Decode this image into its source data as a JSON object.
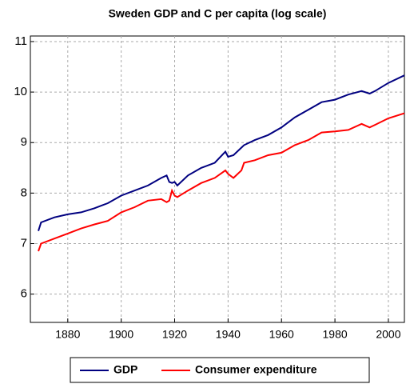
{
  "chart_data": {
    "type": "line",
    "title": "Sweden GDP and C per capita (log scale)",
    "x": [
      1869,
      1870,
      1875,
      1880,
      1885,
      1890,
      1895,
      1900,
      1905,
      1910,
      1915,
      1917,
      1918,
      1919,
      1920,
      1921,
      1925,
      1930,
      1935,
      1939,
      1940,
      1942,
      1945,
      1946,
      1950,
      1955,
      1960,
      1965,
      1970,
      1975,
      1980,
      1985,
      1990,
      1993,
      1995,
      2000,
      2006
    ],
    "series": [
      {
        "name": "GDP",
        "color": "#000080",
        "values": [
          7.25,
          7.42,
          7.52,
          7.58,
          7.62,
          7.7,
          7.8,
          7.95,
          8.05,
          8.15,
          8.3,
          8.35,
          8.22,
          8.2,
          8.22,
          8.15,
          8.35,
          8.5,
          8.6,
          8.82,
          8.72,
          8.75,
          8.9,
          8.95,
          9.05,
          9.15,
          9.3,
          9.5,
          9.65,
          9.8,
          9.85,
          9.95,
          10.02,
          9.97,
          10.02,
          10.18,
          10.33
        ]
      },
      {
        "name": "Consumer expenditure",
        "color": "#ff0000",
        "values": [
          6.85,
          7.0,
          7.1,
          7.2,
          7.3,
          7.38,
          7.45,
          7.62,
          7.72,
          7.85,
          7.88,
          7.82,
          7.85,
          8.05,
          7.95,
          7.92,
          8.05,
          8.2,
          8.3,
          8.45,
          8.38,
          8.3,
          8.45,
          8.6,
          8.65,
          8.75,
          8.8,
          8.95,
          9.05,
          9.2,
          9.22,
          9.25,
          9.37,
          9.3,
          9.35,
          9.48,
          9.58
        ]
      }
    ],
    "xlim": [
      1866,
      2006
    ],
    "xticks": [
      1880,
      1900,
      1920,
      1940,
      1960,
      1980,
      2000
    ],
    "ylim": [
      5.44,
      11.11
    ],
    "yticks": [
      6,
      7,
      8,
      9,
      10,
      11
    ],
    "grid": true
  }
}
